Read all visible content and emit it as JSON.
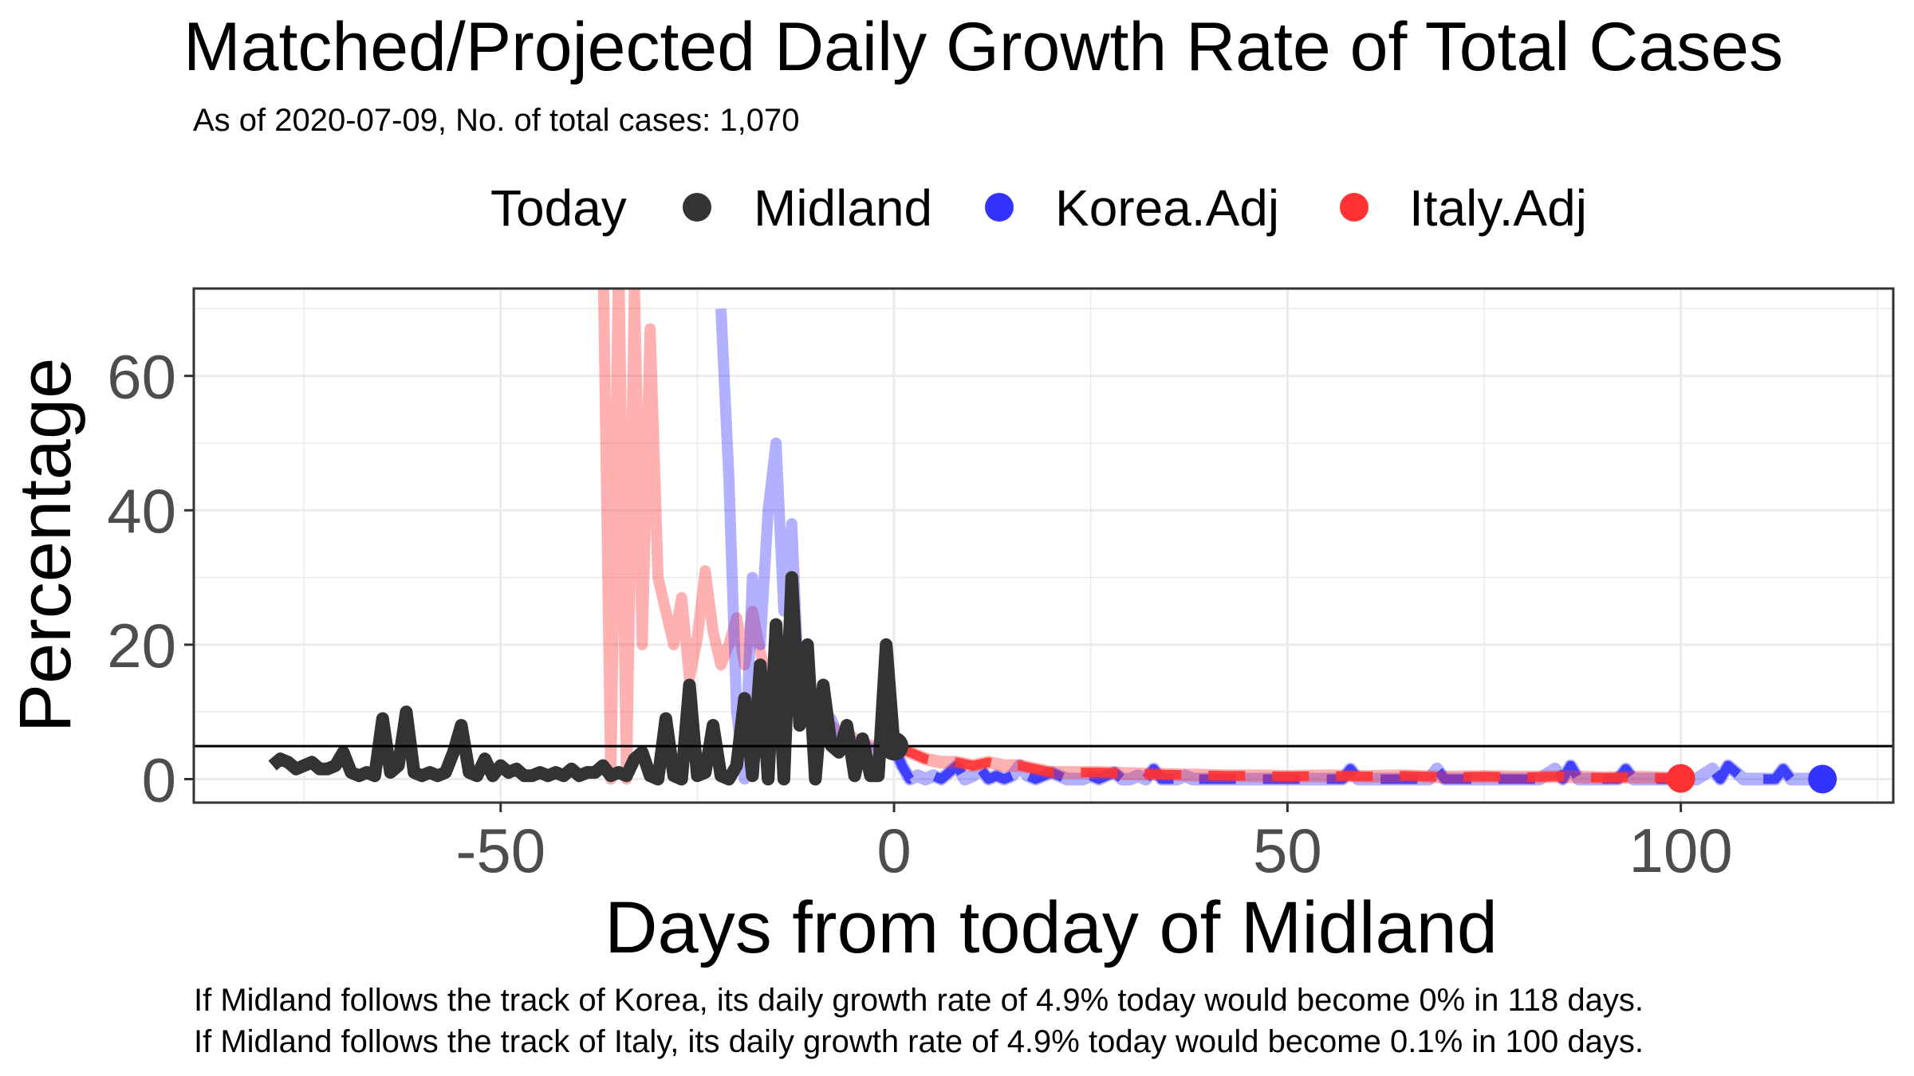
{
  "chart_data": {
    "type": "line",
    "title": "Matched/Projected Daily Growth Rate of Total Cases",
    "subtitle": "As of 2020-07-09, No. of total cases: 1,070",
    "xlabel": "Days from today of Midland",
    "ylabel": "Percentage",
    "xlim": [
      -89,
      127
    ],
    "ylim": [
      -3.5,
      73
    ],
    "x_ticks": [
      -50,
      0,
      50,
      100
    ],
    "y_ticks": [
      0,
      20,
      40,
      60
    ],
    "x_tick_labels": [
      "-50",
      "0",
      "50",
      "100"
    ],
    "y_tick_labels": [
      "0",
      "20",
      "40",
      "60"
    ],
    "grid": true,
    "legend": {
      "position": "top",
      "title": "Today",
      "entries": [
        "Midland",
        "Korea.Adj",
        "Italy.Adj"
      ]
    },
    "reference_line": {
      "y": 4.9
    },
    "today_point": {
      "x": 0,
      "y": 4.9
    },
    "series": [
      {
        "name": "Midland",
        "color": "#333333",
        "x": [
          -79,
          -78,
          -77,
          -76,
          -75,
          -74,
          -73,
          -72,
          -71,
          -70,
          -69,
          -68,
          -67,
          -66,
          -65,
          -64,
          -63,
          -62,
          -61,
          -60,
          -59,
          -58,
          -57,
          -56,
          -55,
          -54,
          -53,
          -52,
          -51,
          -50,
          -49,
          -48,
          -47,
          -46,
          -45,
          -44,
          -43,
          -42,
          -41,
          -40,
          -39,
          -38,
          -37,
          -36,
          -35,
          -34,
          -33,
          -32,
          -31,
          -30,
          -29,
          -28,
          -27,
          -26,
          -25,
          -24,
          -23,
          -22,
          -21,
          -20,
          -19,
          -18,
          -17,
          -16,
          -15,
          -14,
          -13,
          -12,
          -11,
          -10,
          -9,
          -8,
          -7,
          -6,
          -5,
          -4,
          -3,
          -2,
          -1,
          0
        ],
        "y": [
          2,
          3,
          2.5,
          1.5,
          2,
          2.5,
          1.5,
          1.5,
          2,
          4,
          1,
          0.5,
          1,
          0.5,
          9,
          1,
          2,
          10,
          1,
          0.5,
          1,
          0.5,
          1,
          4,
          8,
          1,
          0.5,
          3,
          0.5,
          2,
          1,
          1.5,
          0.5,
          0.5,
          1,
          0.5,
          1,
          0.5,
          1.5,
          0.5,
          1,
          1,
          2,
          0.5,
          1,
          0.5,
          3,
          4,
          0.5,
          0,
          9,
          0.5,
          0,
          14,
          0.5,
          1,
          8,
          0.5,
          0,
          2,
          12,
          0.5,
          17,
          0,
          23,
          0,
          30,
          8,
          20,
          0,
          14,
          5,
          4,
          8,
          0.5,
          6,
          0.5,
          0.5,
          20,
          4.9
        ]
      },
      {
        "name": "Korea.Adj",
        "color": "#3333ff",
        "projected_x": [
          0,
          1,
          2,
          3,
          4,
          5,
          6,
          7,
          8,
          9,
          10,
          11,
          12,
          13,
          14,
          15,
          16,
          17,
          18,
          19,
          20,
          22,
          24,
          25,
          26,
          27,
          28,
          29,
          30,
          31,
          32,
          33,
          34,
          35,
          36,
          37,
          38,
          40,
          42,
          44,
          46,
          48,
          50,
          52,
          54,
          56,
          57,
          58,
          59,
          60,
          62,
          64,
          66,
          68,
          69,
          70,
          71,
          72,
          74,
          76,
          78,
          79,
          80,
          82,
          84,
          85,
          86,
          87,
          88,
          90,
          92,
          93,
          94,
          95,
          96,
          98,
          100,
          102,
          104,
          105,
          106,
          108,
          110,
          112,
          113,
          114,
          116,
          118
        ],
        "projected_y": [
          4.9,
          2,
          0,
          0.5,
          0,
          0.5,
          0,
          1,
          2,
          0,
          0.5,
          1.5,
          0,
          0.5,
          0,
          0.5,
          2,
          0.5,
          0,
          0.5,
          1,
          0,
          0,
          0.5,
          0,
          0.5,
          1,
          0,
          0,
          0.5,
          0,
          1.5,
          0,
          0,
          0,
          0.5,
          0,
          0,
          0,
          0,
          0,
          0,
          0,
          0,
          0,
          0,
          0,
          1.5,
          0,
          0,
          0,
          0,
          0,
          0,
          1.5,
          0,
          0,
          0,
          0,
          0,
          0,
          0,
          0,
          0,
          1.5,
          0,
          2,
          0,
          0,
          0,
          0,
          1.5,
          0,
          0,
          0,
          0,
          0,
          0,
          1.5,
          0,
          2,
          0,
          0,
          0,
          1.5,
          0,
          0,
          0
        ],
        "matched_x": [
          -22,
          -21,
          -20,
          -19,
          -18,
          -17,
          -16,
          -15,
          -14,
          -13,
          -12,
          -11,
          -10,
          -9,
          -8,
          -7,
          -6,
          -5,
          -4,
          -3,
          -2,
          -1
        ],
        "matched_y": [
          70,
          45,
          10,
          0,
          30,
          20,
          40,
          50,
          25,
          38,
          10,
          14,
          8,
          10,
          9,
          6,
          7,
          5,
          6,
          4,
          5,
          4.9
        ],
        "end_point": {
          "x": 118,
          "y": 0
        }
      },
      {
        "name": "Italy.Adj",
        "color": "#ff3333",
        "projected_x": [
          0,
          2,
          4,
          6,
          8,
          10,
          12,
          14,
          16,
          18,
          20,
          23,
          26,
          30,
          34,
          38,
          42,
          46,
          50,
          55,
          60,
          65,
          70,
          75,
          80,
          85,
          90,
          95,
          100
        ],
        "projected_y": [
          4.9,
          4,
          3,
          2.5,
          2.5,
          2,
          2.5,
          2,
          2,
          1.5,
          1,
          1,
          1,
          0.8,
          0.7,
          0.6,
          0.5,
          0.5,
          0.4,
          0.5,
          0.4,
          0.5,
          0.3,
          0.4,
          0.3,
          0.4,
          0.2,
          0.3,
          0.1
        ],
        "matched_x": [
          -37,
          -36,
          -35,
          -34,
          -33,
          -32,
          -31,
          -30,
          -29,
          -28,
          -27,
          -26,
          -25,
          -24,
          -23,
          -22,
          -21,
          -20,
          -19,
          -18,
          -17,
          -16,
          -15,
          -14,
          -13,
          -12,
          -11,
          -10,
          -9,
          -8,
          -7,
          -6,
          -5,
          -4,
          -3,
          -2,
          -1
        ],
        "matched_y": [
          80,
          0,
          78,
          0,
          73,
          20,
          67,
          30,
          25,
          20,
          27,
          15,
          21,
          31,
          22,
          17,
          20,
          24,
          17,
          25,
          19,
          14,
          13,
          15,
          12,
          11,
          13,
          10,
          9,
          8,
          7,
          7,
          6,
          5.5,
          5,
          5,
          4.9
        ],
        "end_point": {
          "x": 100,
          "y": 0.1
        }
      }
    ],
    "captions": [
      "If Midland follows the track of Korea, its daily growth rate of 4.9% today would become 0% in 118 days.",
      "If Midland follows the track of Italy, its daily growth rate of 4.9% today would become 0.1% in 100 days."
    ]
  }
}
